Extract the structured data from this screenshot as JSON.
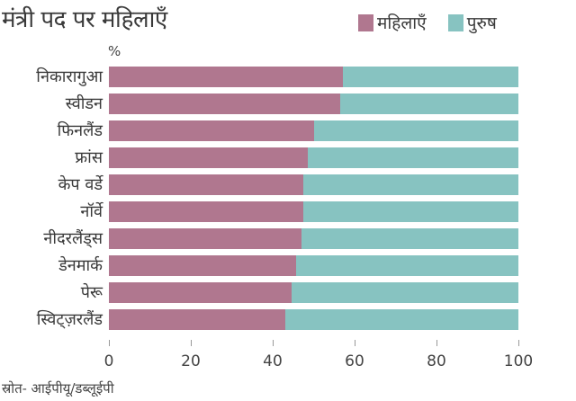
{
  "title": "मंत्री पद पर महिलाएँ",
  "unit_label": "%",
  "source": "स्रोत- आईपीयू/डब्लूईपी",
  "colors": {
    "women": "#b0778f",
    "men": "#87c3c1"
  },
  "legend": [
    {
      "label": "महिलाएँ",
      "color": "#b0778f"
    },
    {
      "label": "पुरुष",
      "color": "#87c3c1"
    }
  ],
  "axis": {
    "ticks": [
      "0",
      "20",
      "40",
      "60",
      "80",
      "100"
    ]
  },
  "chart_data": {
    "type": "bar",
    "orientation": "horizontal",
    "stacked": true,
    "title": "मंत्री पद पर महिलाएँ",
    "xlabel": "",
    "ylabel": "%",
    "xlim": [
      0,
      100
    ],
    "xticks": [
      0,
      20,
      40,
      60,
      80,
      100
    ],
    "legend_position": "top-right",
    "grid": false,
    "categories": [
      "निकारागुआ",
      "स्वीडन",
      "फिनलैंड",
      "फ्रांस",
      "केप वर्डे",
      "नॉर्वे",
      "नीदरलैंड्स",
      "डेनमार्क",
      "पेरू",
      "स्विट्ज़रलैंड"
    ],
    "series": [
      {
        "name": "महिलाएँ",
        "values": [
          57.1,
          56.5,
          50.0,
          48.6,
          47.4,
          47.4,
          47.1,
          45.7,
          44.6,
          43.1
        ]
      },
      {
        "name": "पुरुष",
        "values": [
          42.9,
          43.5,
          50.0,
          51.4,
          52.6,
          52.6,
          52.9,
          54.3,
          55.4,
          56.9
        ]
      }
    ],
    "annotations": [
      "स्रोत- आईपीयू/डब्लूईपी"
    ]
  }
}
